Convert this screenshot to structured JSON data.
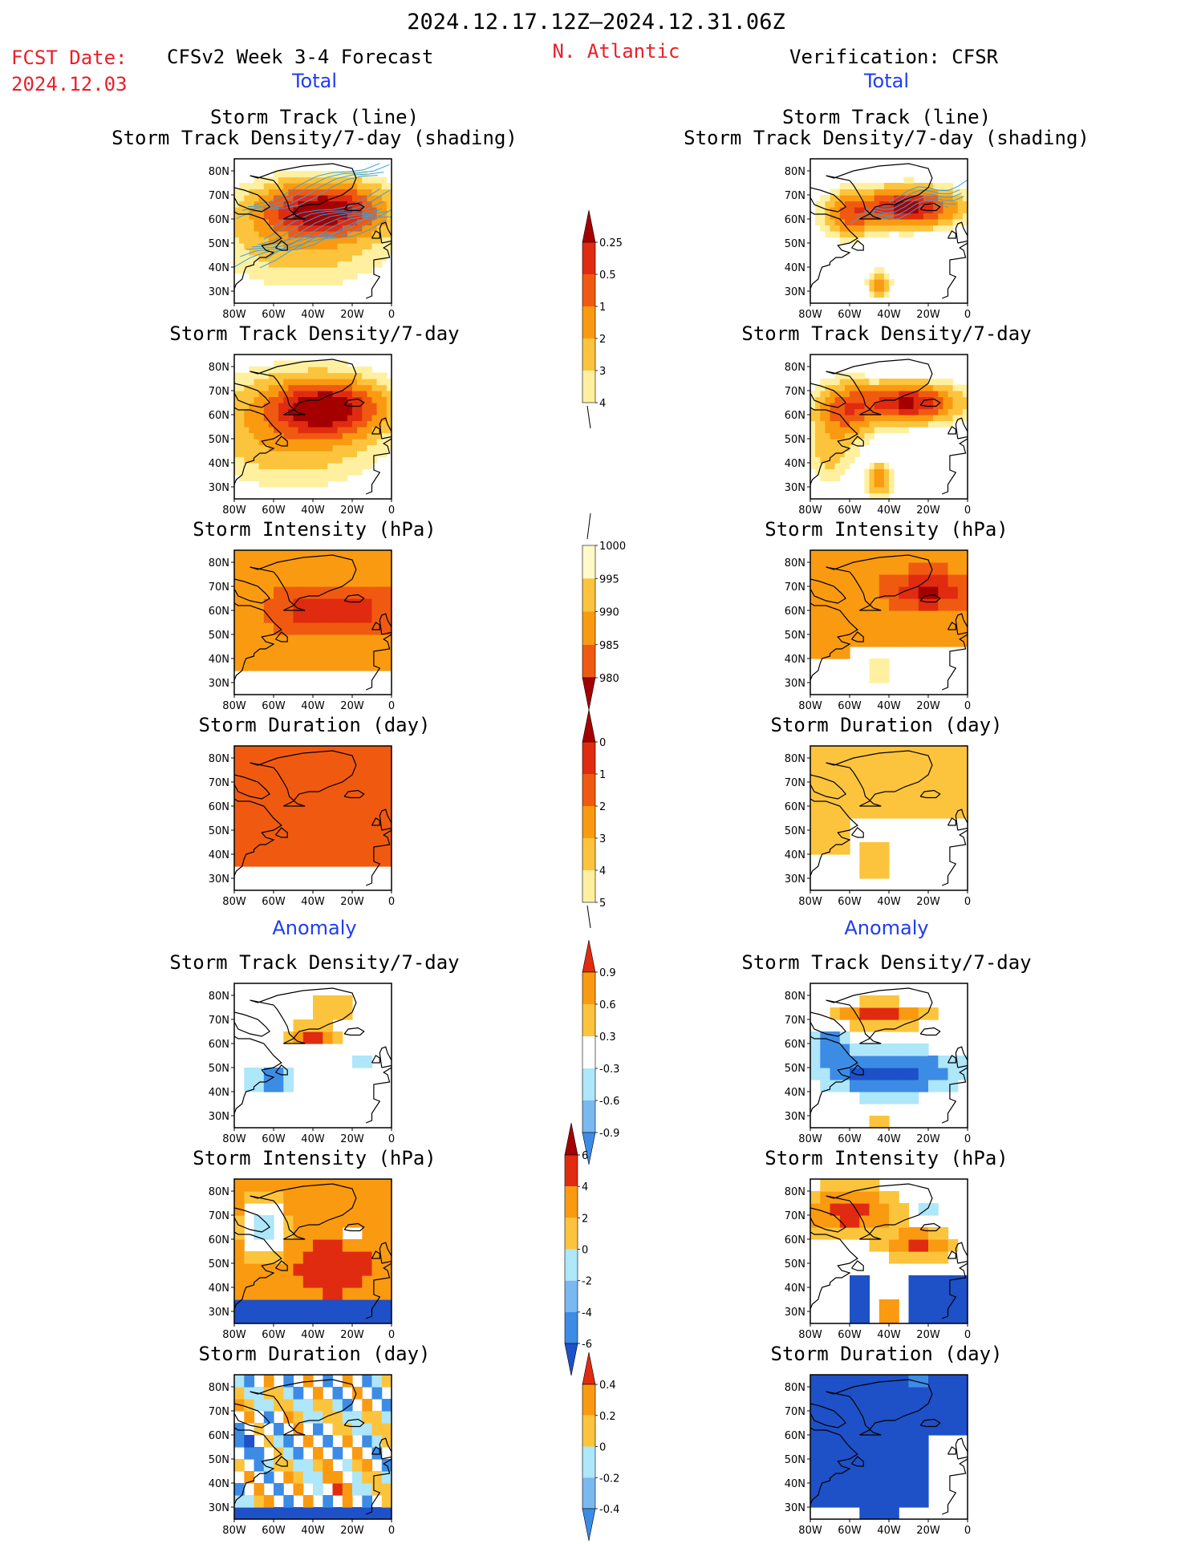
{
  "header": {
    "period": "2024.12.17.12Z–2024.12.31.06Z",
    "fcst_label": "FCST Date:",
    "fcst_date": "2024.12.03",
    "left_title": "CFSv2 Week 3-4 Forecast",
    "region": "N. Atlantic",
    "right_title": "Verification: CFSR",
    "total_left": "Total",
    "total_right": "Total",
    "anomaly_left": "Anomaly",
    "anomaly_right": "Anomaly"
  },
  "panel_titles": {
    "track_line": "Storm Track (line)",
    "track_shading": "Storm Track Density/7-day (shading)",
    "density": "Storm Track Density/7-day",
    "intensity": "Storm Intensity (hPa)",
    "duration": "Storm Duration (day)"
  },
  "axes": {
    "lat_ticks": [
      "80N",
      "70N",
      "60N",
      "50N",
      "40N",
      "30N"
    ],
    "lon_ticks": [
      "80W",
      "60W",
      "40W",
      "20W",
      "0"
    ]
  },
  "colorbars": {
    "density_total": [
      "0.25",
      "0.5",
      "1",
      "2",
      "3",
      "4"
    ],
    "intensity_total": [
      "1000",
      "995",
      "990",
      "985",
      "980"
    ],
    "duration_total": [
      "0",
      "1",
      "2",
      "3",
      "4",
      "5"
    ],
    "density_anom": [
      "0.9",
      "0.6",
      "0.3",
      "-0.3",
      "-0.6",
      "-0.9"
    ],
    "intensity_anom": [
      "6",
      "4",
      "2",
      "0",
      "-2",
      "-4",
      "-6"
    ],
    "duration_anom": [
      "0.4",
      "0.2",
      "0",
      "-0.2",
      "-0.4"
    ]
  },
  "colors": {
    "dark_red": "#a50000",
    "red": "#e02b10",
    "orange_red": "#f05a10",
    "orange": "#fa9a10",
    "gold": "#fcc43c",
    "light_yellow": "#fff0a0",
    "pale_yellow": "#fffac8",
    "light_blue": "#aee6fa",
    "sky_blue": "#7ab8f0",
    "blue": "#3c8ce6",
    "dark_blue": "#1e50c8",
    "track_line": "#3ca0dc"
  }
}
